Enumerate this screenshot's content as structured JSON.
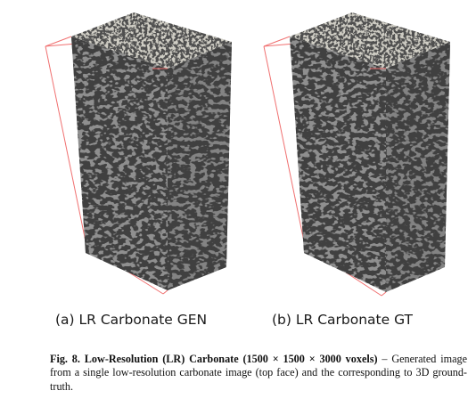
{
  "figure": {
    "panels": [
      {
        "id": "a",
        "subcaption": "(a) LR Carbonate GEN"
      },
      {
        "id": "b",
        "subcaption": "(b) LR Carbonate GT"
      }
    ],
    "caption": {
      "label": "Fig. 8.",
      "title": "Low-Resolution (LR) Carbonate (1500 × 1500 × 3000 voxels)",
      "text": " – Generated image from a single low-resolution carbonate image (top face) and the corresponding to 3D ground-truth."
    },
    "colors": {
      "top_face": "#cfcdc4",
      "front_face": "#8f8f8f",
      "side_face": "#838383",
      "pore": "#141414",
      "bounding_box": "#f07070"
    }
  }
}
